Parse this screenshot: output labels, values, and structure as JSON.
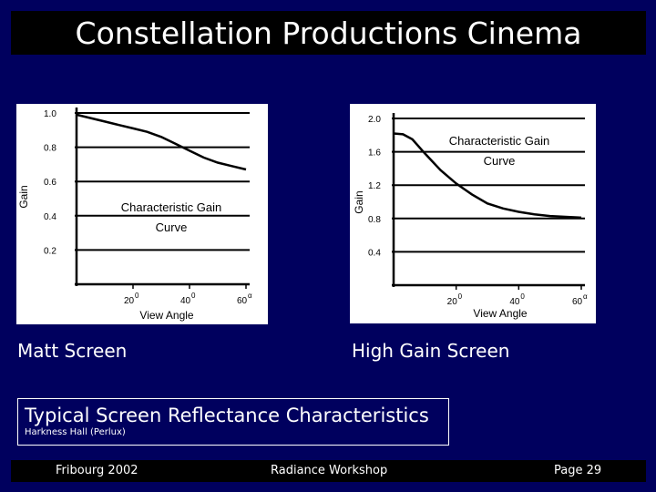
{
  "slide": {
    "title": "Constellation Productions Cinema",
    "note_title": "Typical Screen Reflectance Characteristics",
    "note_sub": "Harkness Hall (Perlux)"
  },
  "footer": {
    "left": "Fribourg 2002",
    "center": "Radiance Workshop",
    "right": "Page 29"
  },
  "chart_data": [
    {
      "type": "line",
      "caption": "Matt Screen",
      "annotation": [
        "Characteristic Gain",
        "Curve"
      ],
      "xlabel": "View Angle",
      "ylabel": "Gain",
      "xlim": [
        0,
        60
      ],
      "ylim": [
        0,
        1.0
      ],
      "y_ticks": [
        "1.0",
        "0.8",
        "0.6",
        "0.4",
        "0.2"
      ],
      "y_tick_values": [
        1.0,
        0.8,
        0.6,
        0.4,
        0.2
      ],
      "x_ticks": [
        {
          "value": 20,
          "label": "20",
          "sup": "0"
        },
        {
          "value": 40,
          "label": "40",
          "sup": "0"
        },
        {
          "value": 60,
          "label": "60",
          "sup": "α"
        }
      ],
      "grid": "horizontal",
      "series": [
        {
          "x": [
            0,
            5,
            10,
            15,
            20,
            25,
            30,
            35,
            40,
            45,
            50,
            55,
            60
          ],
          "y": [
            0.99,
            0.97,
            0.95,
            0.93,
            0.91,
            0.89,
            0.86,
            0.82,
            0.78,
            0.74,
            0.71,
            0.69,
            0.67
          ]
        }
      ]
    },
    {
      "type": "line",
      "caption": "High Gain Screen",
      "annotation": [
        "Characteristic Gain",
        "Curve"
      ],
      "xlabel": "View Angle",
      "ylabel": "Gain",
      "xlim": [
        0,
        60
      ],
      "ylim": [
        0,
        2.0
      ],
      "y_ticks": [
        "2.0",
        "1.6",
        "1.2",
        "0.8",
        "0.4"
      ],
      "y_tick_values": [
        2.0,
        1.6,
        1.2,
        0.8,
        0.4
      ],
      "x_ticks": [
        {
          "value": 20,
          "label": "20",
          "sup": "0"
        },
        {
          "value": 40,
          "label": "40",
          "sup": "0"
        },
        {
          "value": 60,
          "label": "60",
          "sup": "α"
        }
      ],
      "grid": "horizontal",
      "series": [
        {
          "x": [
            0,
            3,
            6,
            10,
            15,
            20,
            25,
            30,
            35,
            40,
            45,
            50,
            55,
            60
          ],
          "y": [
            1.82,
            1.81,
            1.75,
            1.58,
            1.38,
            1.22,
            1.09,
            0.98,
            0.92,
            0.88,
            0.85,
            0.83,
            0.82,
            0.81
          ]
        }
      ]
    }
  ]
}
